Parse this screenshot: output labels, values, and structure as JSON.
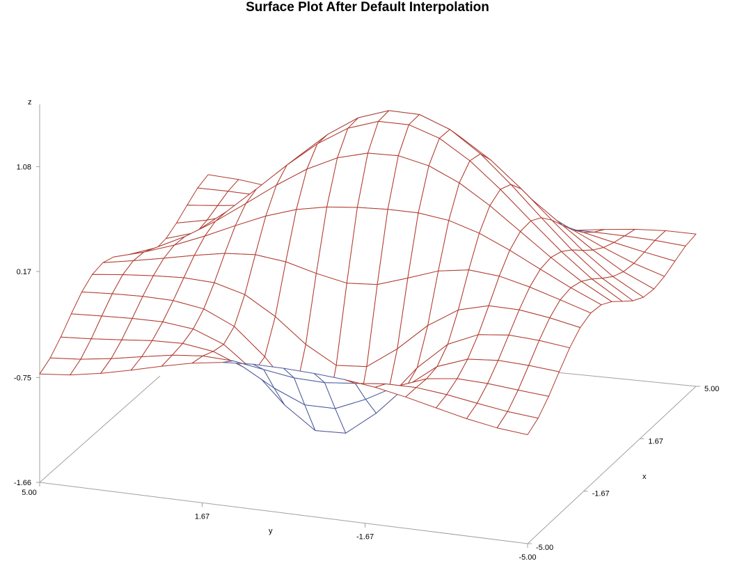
{
  "chart_data": {
    "type": "surface",
    "title": "Surface Plot After Default Interpolation",
    "xlabel": "x",
    "ylabel": "y",
    "zlabel": "z",
    "xlim": [
      -5.0,
      5.0
    ],
    "ylim": [
      -5.0,
      5.0
    ],
    "zlim": [
      -1.66,
      1.62
    ],
    "x_ticks": [
      "-5.00",
      "-1.67",
      "1.67",
      "5.00"
    ],
    "y_ticks": [
      "5.00",
      "1.67",
      "-1.67",
      "-5.00"
    ],
    "z_ticks": [
      "-1.66",
      "-0.75",
      "0.17",
      "1.08"
    ],
    "grid": false,
    "colors": {
      "surface_top": "#4a5a9c",
      "surface_underside": "#b03a2e",
      "axes": "#a0a0a0"
    }
  }
}
